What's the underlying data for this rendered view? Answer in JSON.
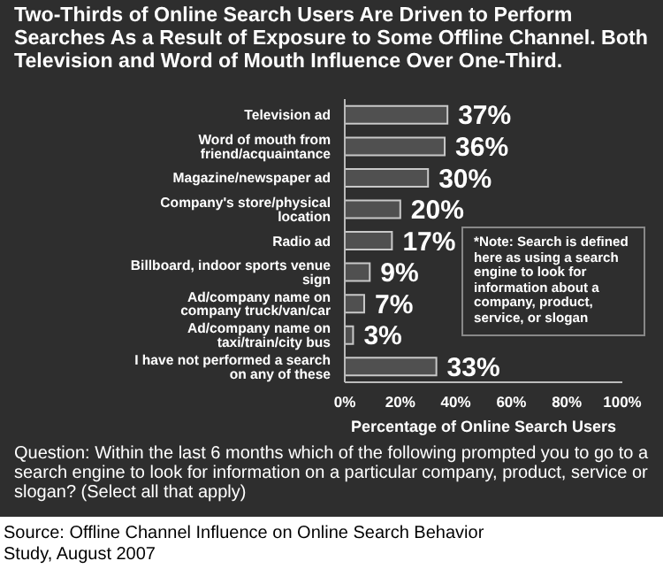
{
  "chart_data": {
    "type": "bar",
    "orientation": "horizontal",
    "title": "Two-Thirds of Online Search Users Are Driven to Perform Searches As a Result of Exposure to Some Offline Channel. Both Television and Word of Mouth Influence Over One-Third.",
    "categories": [
      "Television ad",
      "Word of mouth from friend/acquaintance",
      "Magazine/newspaper ad",
      "Company's store/physical location",
      "Radio ad",
      "Billboard, indoor sports venue sign",
      "Ad/company name on company truck/van/car",
      "Ad/company name on taxi/train/city bus",
      "I have not performed a search on any of these"
    ],
    "values": [
      37,
      36,
      30,
      20,
      17,
      9,
      7,
      3,
      33
    ],
    "value_labels": [
      "37%",
      "36%",
      "30%",
      "20%",
      "17%",
      "9%",
      "7%",
      "3%",
      "33%"
    ],
    "color": "#505050",
    "xlim": [
      0,
      100
    ],
    "xticks": [
      {
        "value": 0,
        "label": "0%"
      },
      {
        "value": 20,
        "label": "20%"
      },
      {
        "value": 40,
        "label": "40%"
      },
      {
        "value": 60,
        "label": "60%"
      },
      {
        "value": 80,
        "label": "80%"
      },
      {
        "value": 100,
        "label": "100%"
      }
    ],
    "xlabel": "Percentage of Online Search Users",
    "grid": false,
    "legend": false,
    "annotations": [
      "*Note: Search is defined here as using a search engine to look for information about a company, product, service, or slogan",
      "Question: Within the last 6 months which of the following prompted you to go to a search engine to look for information on a particular company, product, service or slogan? (Select all that apply)",
      "Source: Offline Channel Influence on Online Search Behavior Study, August 2007"
    ]
  }
}
